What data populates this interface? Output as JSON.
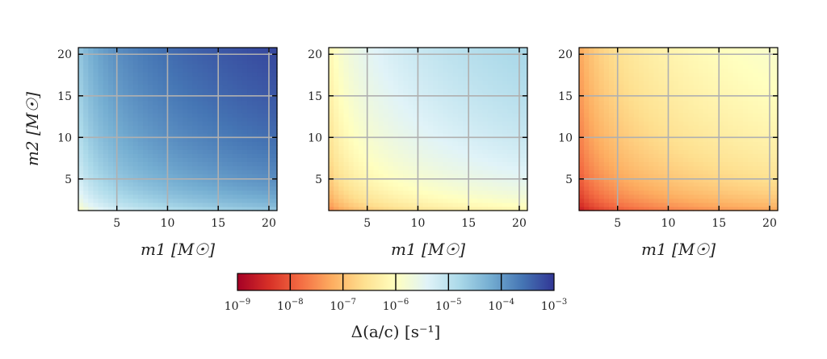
{
  "chart_data": {
    "type": "heatmap",
    "panels": [
      {
        "name": "panel-1",
        "xlabel": "m1 [M☉]",
        "ylabel": "m2 [M☉]",
        "xlim": [
          1.2,
          20.8
        ],
        "ylim": [
          1.2,
          20.8
        ],
        "xticks": [
          "5",
          "10",
          "15",
          "20"
        ],
        "yticks": [
          "5",
          "10",
          "15",
          "20"
        ],
        "grid": true,
        "log10_value_at": {
          "m1=1,m2=1": -6.2,
          "m1=20,m2=20": -3.2
        }
      },
      {
        "name": "panel-2",
        "xlabel": "m1 [M☉]",
        "ylabel": "",
        "xlim": [
          1.2,
          20.8
        ],
        "ylim": [
          1.2,
          20.8
        ],
        "xticks": [
          "5",
          "10",
          "15",
          "20"
        ],
        "yticks": [
          "5",
          "10",
          "15",
          "20"
        ],
        "grid": true,
        "log10_value_at": {
          "m1=1,m2=1": -7.8,
          "m1=20,m2=20": -4.8
        }
      },
      {
        "name": "panel-3",
        "xlabel": "m1 [M☉]",
        "ylabel": "",
        "xlim": [
          1.2,
          20.8
        ],
        "ylim": [
          1.2,
          20.8
        ],
        "xticks": [
          "5",
          "10",
          "15",
          "20"
        ],
        "yticks": [
          "5",
          "10",
          "15",
          "20"
        ],
        "grid": true,
        "log10_value_at": {
          "m1=1,m2=1": -8.9,
          "m1=20,m2=20": -5.9
        }
      }
    ],
    "colorbar": {
      "label": "Δ(a/c) [s⁻¹]",
      "scale": "log",
      "range": [
        1e-09,
        0.001
      ],
      "ticks": [
        {
          "base": "10",
          "exp": "−9"
        },
        {
          "base": "10",
          "exp": "−8"
        },
        {
          "base": "10",
          "exp": "−7"
        },
        {
          "base": "10",
          "exp": "−6"
        },
        {
          "base": "10",
          "exp": "−5"
        },
        {
          "base": "10",
          "exp": "−4"
        },
        {
          "base": "10",
          "exp": "−3"
        }
      ],
      "colormap": "RdYlBu",
      "colormap_stops": [
        "#a50026",
        "#d73027",
        "#f46d43",
        "#fdae61",
        "#fee090",
        "#ffffbf",
        "#e0f3f8",
        "#abd9e9",
        "#74add1",
        "#4575b4",
        "#313695"
      ]
    },
    "grid_color": "#b0b0b0"
  }
}
